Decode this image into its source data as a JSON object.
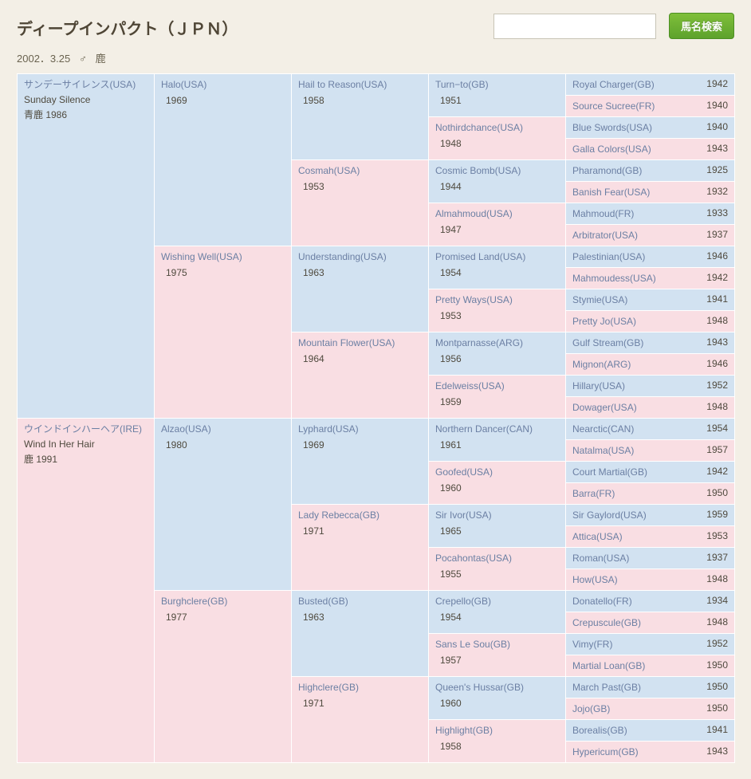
{
  "horse": {
    "name": "ディープインパクト（ＪＰＮ）",
    "date": "2002．3.25",
    "sex": "♂",
    "color": "鹿"
  },
  "search": {
    "placeholder": "",
    "button": "馬名検索"
  },
  "gen1": [
    {
      "sex": "m",
      "name": "サンデーサイレンス(USA)",
      "alt": "Sunday Silence",
      "coat": "青鹿",
      "year": "1986"
    },
    {
      "sex": "f",
      "name": "ウインドインハーヘア(IRE)",
      "alt": "Wind In Her Hair",
      "coat": "鹿",
      "year": "1991"
    }
  ],
  "gen2": [
    {
      "sex": "m",
      "name": "Halo(USA)",
      "year": "1969"
    },
    {
      "sex": "f",
      "name": "Wishing Well(USA)",
      "year": "1975"
    },
    {
      "sex": "m",
      "name": "Alzao(USA)",
      "year": "1980"
    },
    {
      "sex": "f",
      "name": "Burghclere(GB)",
      "year": "1977"
    }
  ],
  "gen3": [
    {
      "sex": "m",
      "name": "Hail to Reason(USA)",
      "year": "1958"
    },
    {
      "sex": "f",
      "name": "Cosmah(USA)",
      "year": "1953"
    },
    {
      "sex": "m",
      "name": "Understanding(USA)",
      "year": "1963"
    },
    {
      "sex": "f",
      "name": "Mountain Flower(USA)",
      "year": "1964"
    },
    {
      "sex": "m",
      "name": "Lyphard(USA)",
      "year": "1969"
    },
    {
      "sex": "f",
      "name": "Lady Rebecca(GB)",
      "year": "1971"
    },
    {
      "sex": "m",
      "name": "Busted(GB)",
      "year": "1963"
    },
    {
      "sex": "f",
      "name": "Highclere(GB)",
      "year": "1971"
    }
  ],
  "gen4": [
    {
      "sex": "m",
      "name": "Turn−to(GB)",
      "year": "1951"
    },
    {
      "sex": "f",
      "name": "Nothirdchance(USA)",
      "year": "1948"
    },
    {
      "sex": "m",
      "name": "Cosmic Bomb(USA)",
      "year": "1944"
    },
    {
      "sex": "f",
      "name": "Almahmoud(USA)",
      "year": "1947"
    },
    {
      "sex": "m",
      "name": "Promised Land(USA)",
      "year": "1954"
    },
    {
      "sex": "f",
      "name": "Pretty Ways(USA)",
      "year": "1953"
    },
    {
      "sex": "m",
      "name": "Montparnasse(ARG)",
      "year": "1956"
    },
    {
      "sex": "f",
      "name": "Edelweiss(USA)",
      "year": "1959"
    },
    {
      "sex": "m",
      "name": "Northern Dancer(CAN)",
      "year": "1961"
    },
    {
      "sex": "f",
      "name": "Goofed(USA)",
      "year": "1960"
    },
    {
      "sex": "m",
      "name": "Sir Ivor(USA)",
      "year": "1965"
    },
    {
      "sex": "f",
      "name": "Pocahontas(USA)",
      "year": "1955"
    },
    {
      "sex": "m",
      "name": "Crepello(GB)",
      "year": "1954"
    },
    {
      "sex": "f",
      "name": "Sans Le Sou(GB)",
      "year": "1957"
    },
    {
      "sex": "m",
      "name": "Queen's Hussar(GB)",
      "year": "1960"
    },
    {
      "sex": "f",
      "name": "Highlight(GB)",
      "year": "1958"
    }
  ],
  "gen5": [
    {
      "sex": "m",
      "name": "Royal Charger(GB)",
      "year": "1942"
    },
    {
      "sex": "f",
      "name": "Source Sucree(FR)",
      "year": "1940"
    },
    {
      "sex": "m",
      "name": "Blue Swords(USA)",
      "year": "1940"
    },
    {
      "sex": "f",
      "name": "Galla Colors(USA)",
      "year": "1943"
    },
    {
      "sex": "m",
      "name": "Pharamond(GB)",
      "year": "1925"
    },
    {
      "sex": "f",
      "name": "Banish Fear(USA)",
      "year": "1932"
    },
    {
      "sex": "m",
      "name": "Mahmoud(FR)",
      "year": "1933"
    },
    {
      "sex": "f",
      "name": "Arbitrator(USA)",
      "year": "1937"
    },
    {
      "sex": "m",
      "name": "Palestinian(USA)",
      "year": "1946"
    },
    {
      "sex": "f",
      "name": "Mahmoudess(USA)",
      "year": "1942"
    },
    {
      "sex": "m",
      "name": "Stymie(USA)",
      "year": "1941"
    },
    {
      "sex": "f",
      "name": "Pretty Jo(USA)",
      "year": "1948"
    },
    {
      "sex": "m",
      "name": "Gulf Stream(GB)",
      "year": "1943"
    },
    {
      "sex": "f",
      "name": "Mignon(ARG)",
      "year": "1946"
    },
    {
      "sex": "m",
      "name": "Hillary(USA)",
      "year": "1952"
    },
    {
      "sex": "f",
      "name": "Dowager(USA)",
      "year": "1948"
    },
    {
      "sex": "m",
      "name": "Nearctic(CAN)",
      "year": "1954"
    },
    {
      "sex": "f",
      "name": "Natalma(USA)",
      "year": "1957"
    },
    {
      "sex": "m",
      "name": "Court Martial(GB)",
      "year": "1942"
    },
    {
      "sex": "f",
      "name": "Barra(FR)",
      "year": "1950"
    },
    {
      "sex": "m",
      "name": "Sir Gaylord(USA)",
      "year": "1959"
    },
    {
      "sex": "f",
      "name": "Attica(USA)",
      "year": "1953"
    },
    {
      "sex": "m",
      "name": "Roman(USA)",
      "year": "1937"
    },
    {
      "sex": "f",
      "name": "How(USA)",
      "year": "1948"
    },
    {
      "sex": "m",
      "name": "Donatello(FR)",
      "year": "1934"
    },
    {
      "sex": "f",
      "name": "Crepuscule(GB)",
      "year": "1948"
    },
    {
      "sex": "m",
      "name": "Vimy(FR)",
      "year": "1952"
    },
    {
      "sex": "f",
      "name": "Martial Loan(GB)",
      "year": "1950"
    },
    {
      "sex": "m",
      "name": "March Past(GB)",
      "year": "1950"
    },
    {
      "sex": "f",
      "name": "Jojo(GB)",
      "year": "1950"
    },
    {
      "sex": "m",
      "name": "Borealis(GB)",
      "year": "1941"
    },
    {
      "sex": "f",
      "name": "Hypericum(GB)",
      "year": "1943"
    }
  ]
}
